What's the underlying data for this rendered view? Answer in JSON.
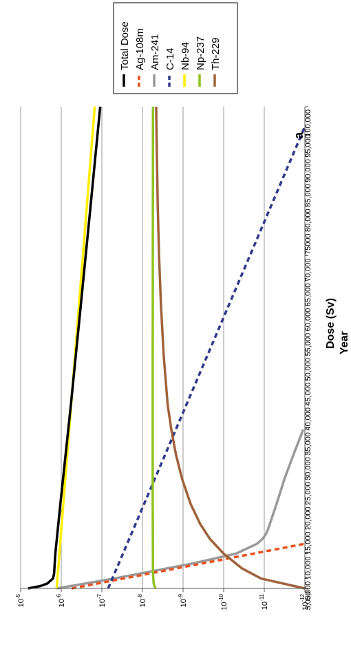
{
  "chart_data": {
    "type": "line",
    "panel_label": "a",
    "ylabel": "Dose (Sv)",
    "xlabel": "Year",
    "yscale": "log",
    "ylim": [
      1e-12,
      1e-05
    ],
    "xlim": [
      3000,
      100000
    ],
    "y_ticks": [
      {
        "base": "10",
        "exp": "-5",
        "value": 1e-05
      },
      {
        "base": "10",
        "exp": "-6",
        "value": 1e-06
      },
      {
        "base": "10",
        "exp": "-7",
        "value": 1e-07
      },
      {
        "base": "10",
        "exp": "-8",
        "value": 1e-08
      },
      {
        "base": "10",
        "exp": "-9",
        "value": 1e-09
      },
      {
        "base": "10",
        "exp": "-10",
        "value": 1e-10
      },
      {
        "base": "10",
        "exp": "-11",
        "value": 1e-11
      },
      {
        "base": "10",
        "exp": "-12",
        "value": 1e-12
      }
    ],
    "x_ticks": [
      {
        "label": "3,000",
        "value": 3000
      },
      {
        "label": "5,000",
        "value": 5000
      },
      {
        "label": "10,000",
        "value": 10000
      },
      {
        "label": "15,000",
        "value": 15000
      },
      {
        "label": "20,000",
        "value": 20000
      },
      {
        "label": "25,000",
        "value": 25000
      },
      {
        "label": "30,000",
        "value": 30000
      },
      {
        "label": "35,000",
        "value": 35000
      },
      {
        "label": "40,000",
        "value": 40000
      },
      {
        "label": "45,000",
        "value": 45000
      },
      {
        "label": "50,000",
        "value": 50000
      },
      {
        "label": "55,000",
        "value": 55000
      },
      {
        "label": "60,000",
        "value": 60000
      },
      {
        "label": "65,000",
        "value": 65000
      },
      {
        "label": "70,000",
        "value": 70000
      },
      {
        "label": "75000",
        "value": 75000
      },
      {
        "label": "80,000",
        "value": 80000
      },
      {
        "label": "85,000",
        "value": 85000
      },
      {
        "label": "90,000",
        "value": 90000
      },
      {
        "label": "95,000",
        "value": 95000
      },
      {
        "label": "100,000",
        "value": 100000
      }
    ],
    "grid": "horizontal",
    "legend_position": "top-right",
    "series": [
      {
        "name": "Total Dose",
        "color": "#000000",
        "dash": "solid",
        "x": [
          3000,
          3500,
          4000,
          5000,
          6000,
          8000,
          10000,
          20000,
          40000,
          60000,
          80000,
          100000
        ],
        "y": [
          6.5e-06,
          3.2e-06,
          2.2e-06,
          1.6e-06,
          1.5e-06,
          1.45e-06,
          1.4e-06,
          1.05e-06,
          5.8e-07,
          3.3e-07,
          1.9e-07,
          1.1e-07
        ]
      },
      {
        "name": "Ag-108m",
        "color": "#E8501E",
        "dash": "dashed",
        "x": [
          3000,
          12000
        ],
        "y": [
          5.5e-07,
          1e-12
        ]
      },
      {
        "name": "Am-241",
        "color": "#999999",
        "dash": "solid",
        "x": [
          3000,
          5000,
          8000,
          10000,
          12000,
          13000,
          14000,
          15000,
          20000,
          25000,
          30000,
          35000
        ],
        "y": [
          1.3e-06,
          5e-08,
          6e-10,
          5e-11,
          1.5e-11,
          1.1e-11,
          9e-12,
          8e-12,
          5e-12,
          3.2e-12,
          1.9e-12,
          1.1e-12
        ]
      },
      {
        "name": "C-14",
        "color": "#2E3A8C",
        "dash": "dashed",
        "x": [
          3000,
          96000
        ],
        "y": [
          7e-08,
          1e-12
        ]
      },
      {
        "name": "Nb-94",
        "color": "#FFEE00",
        "dash": "solid",
        "x": [
          3000,
          100000
        ],
        "y": [
          1.3e-06,
          1.5e-07
        ]
      },
      {
        "name": "Np-237",
        "color": "#8DC21F",
        "dash": "solid",
        "x": [
          3000,
          4000,
          6000,
          20000,
          50000,
          100000
        ],
        "y": [
          4.8e-09,
          5.3e-09,
          5.5e-09,
          5.6e-09,
          5.6e-09,
          5.5e-09
        ]
      },
      {
        "name": "Th-229",
        "color": "#A0623A",
        "dash": "solid",
        "x": [
          3000,
          5000,
          7000,
          10000,
          13000,
          16000,
          20000,
          25000,
          30000,
          35000,
          40000,
          50000,
          60000,
          70000,
          80000,
          90000,
          100000
        ],
        "y": [
          1e-12,
          1.2e-11,
          3.5e-11,
          1e-10,
          2.2e-10,
          3.8e-10,
          6.5e-10,
          1.05e-09,
          1.5e-09,
          1.95e-09,
          2.4e-09,
          3e-09,
          3.5e-09,
          3.9e-09,
          4.2e-09,
          4.4e-09,
          4.6e-09
        ]
      }
    ]
  }
}
